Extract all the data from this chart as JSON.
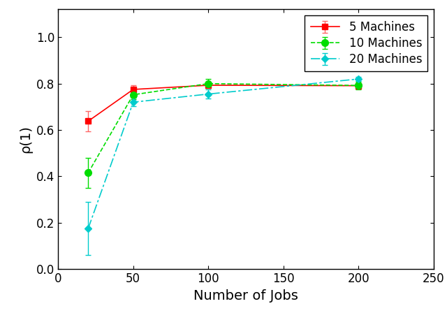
{
  "title": "",
  "xlabel": "Number of Jobs",
  "ylabel": "ρ(1)",
  "xlim": [
    0,
    250
  ],
  "ylim": [
    0,
    1.12
  ],
  "xticks": [
    0,
    50,
    100,
    150,
    200,
    250
  ],
  "yticks": [
    0,
    0.2,
    0.4,
    0.6,
    0.8,
    1
  ],
  "series": [
    {
      "label": "5 Machines",
      "x": [
        20,
        50,
        100,
        200
      ],
      "y": [
        0.638,
        0.775,
        0.793,
        0.791
      ],
      "yerr": [
        0.045,
        0.018,
        0.008,
        0.006
      ],
      "color": "#ff0000",
      "ecolor": "#ff6666",
      "marker": "s",
      "linestyle": "solid",
      "linewidth": 1.2,
      "markersize": 6
    },
    {
      "label": "10 Machines",
      "x": [
        20,
        50,
        100,
        200
      ],
      "y": [
        0.415,
        0.752,
        0.8,
        0.792
      ],
      "yerr": [
        0.065,
        0.018,
        0.02,
        0.017
      ],
      "color": "#00dd00",
      "ecolor": "#00dd00",
      "marker": "o",
      "linestyle": "dashed",
      "linewidth": 1.2,
      "markersize": 7
    },
    {
      "label": "20 Machines",
      "x": [
        20,
        50,
        100,
        200
      ],
      "y": [
        0.175,
        0.72,
        0.755,
        0.82
      ],
      "yerr": [
        0.115,
        0.018,
        0.02,
        0.01
      ],
      "color": "#00cccc",
      "ecolor": "#00cccc",
      "marker": "D",
      "linestyle": "dashdot",
      "linewidth": 1.2,
      "markersize": 5
    }
  ],
  "legend_loc": "upper right",
  "legend_fontsize": 12,
  "axis_label_fontsize": 14,
  "tick_fontsize": 12,
  "background_color": "#ffffff"
}
